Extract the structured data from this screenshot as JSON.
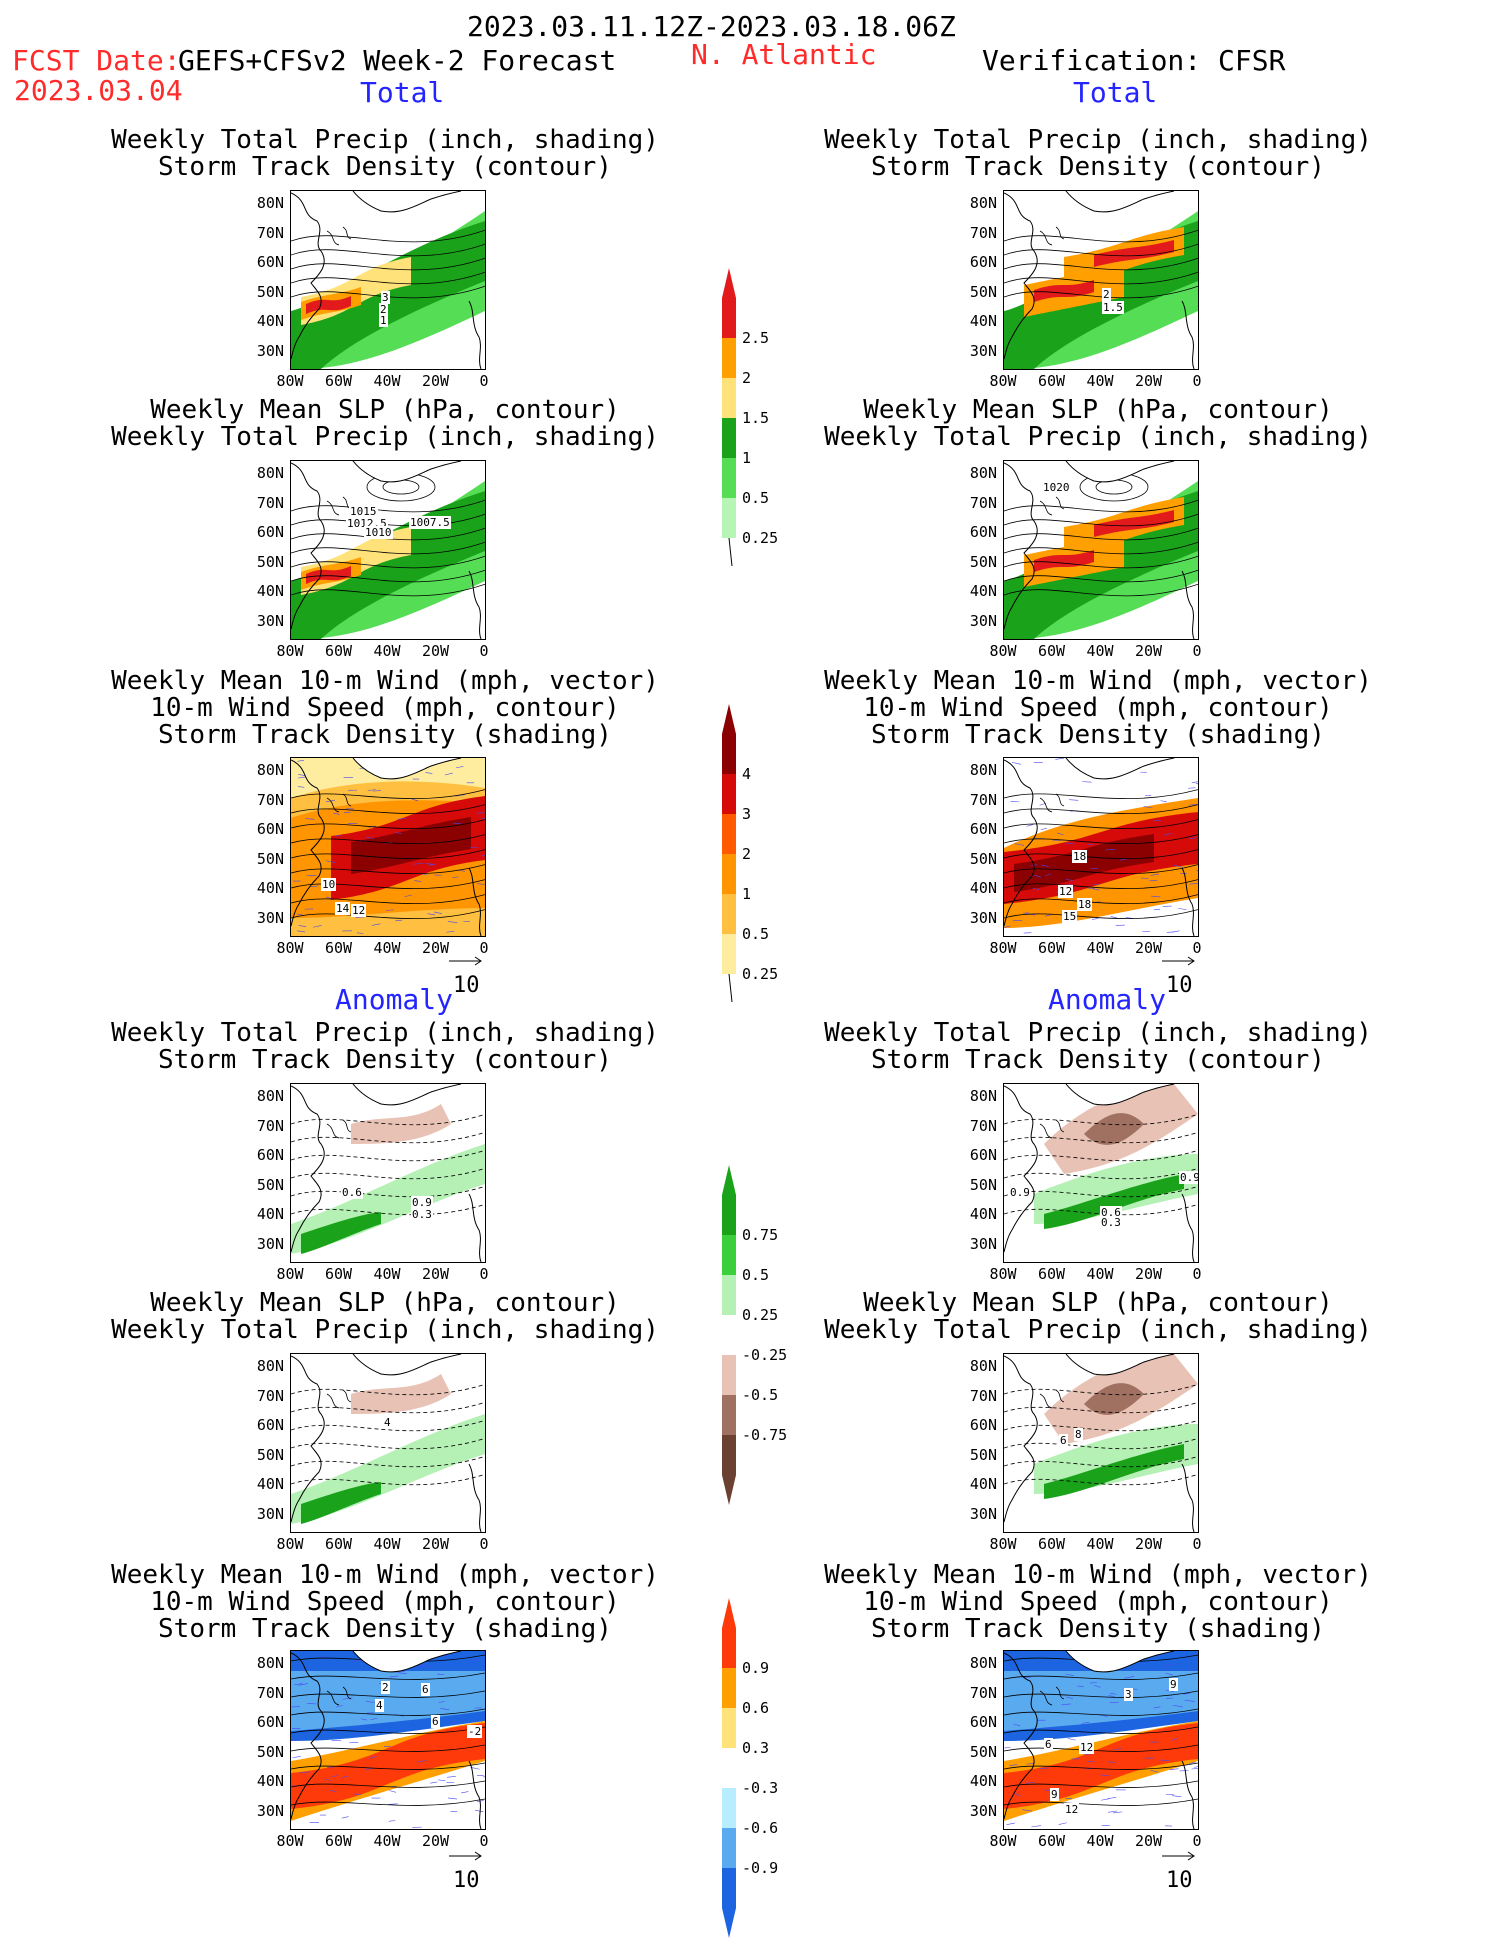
{
  "header": {
    "date_range": "2023.03.11.12Z-2023.03.18.06Z",
    "fcst_label": "FCST Date:",
    "model": "GEFS+CFSv2 Week-2 Forecast",
    "fcst_date": "2023.03.04",
    "region": "N. Atlantic",
    "verification": "Verification: CFSR"
  },
  "sections": {
    "total": "Total",
    "anomaly": "Anomaly"
  },
  "titles": {
    "precip_track": [
      "Weekly Total Precip (inch, shading)",
      "Storm Track Density (contour)"
    ],
    "slp_precip": [
      "Weekly Mean SLP (hPa, contour)",
      "Weekly Total Precip (inch, shading)"
    ],
    "wind_track": [
      "Weekly Mean 10-m Wind (mph, vector)",
      "10-m Wind Speed (mph, contour)",
      "Storm Track Density (shading)"
    ]
  },
  "axes": {
    "lat": [
      "80N",
      "70N",
      "60N",
      "50N",
      "40N",
      "30N"
    ],
    "lon": [
      "80W",
      "60W",
      "40W",
      "20W",
      "0"
    ]
  },
  "vector_ref": "10",
  "colorbars": {
    "precip_total": {
      "labels": [
        "2.5",
        "2",
        "1.5",
        "1",
        "0.5",
        "0.25"
      ],
      "colors": [
        "#e31a1c",
        "#ff9f00",
        "#ffe27a",
        "#1aa31a",
        "#55dd55",
        "#b7f5b7"
      ]
    },
    "track_total": {
      "labels": [
        "4",
        "3",
        "2",
        "1",
        "0.5",
        "0.25"
      ],
      "colors": [
        "#8b0000",
        "#d70a0a",
        "#ff5a00",
        "#ff9500",
        "#ffbf40",
        "#ffed9f"
      ]
    },
    "precip_anom": {
      "labels": [
        "0.75",
        "0.5",
        "0.25",
        "-0.25",
        "-0.5",
        "-0.75"
      ],
      "colors": [
        "#1aa31a",
        "#3ccf3c",
        "#b5f0b5",
        "#ffffff",
        "#e8c2b4",
        "#a07060",
        "#6b4232"
      ]
    },
    "track_anom": {
      "labels": [
        "0.9",
        "0.6",
        "0.3",
        "-0.3",
        "-0.6",
        "-0.9"
      ],
      "colors": [
        "#ff3a0a",
        "#ffa000",
        "#ffe27a",
        "#ffffff",
        "#b8ecff",
        "#5aaaf0",
        "#1c64e0"
      ]
    }
  },
  "panel_labels": {
    "L1": [
      "3",
      "2",
      "1"
    ],
    "R1": [
      "2",
      "1.5"
    ],
    "L2": [
      "1015",
      "1012.5",
      "1010",
      "1007.5"
    ],
    "R2": [
      "1020"
    ],
    "L3": [
      "10",
      "14",
      "12"
    ],
    "R3": [
      "18",
      "12",
      "18",
      "15"
    ],
    "L4": [
      "0.6",
      "0.9",
      "0.3"
    ],
    "R4": [
      "0.9",
      "0.9",
      "0.6",
      "0.3"
    ],
    "L5": [
      "4"
    ],
    "R5": [
      "6",
      "8"
    ],
    "L6": [
      "2",
      "4",
      "6",
      "6",
      "-2"
    ],
    "R6": [
      "3",
      "9",
      "6",
      "12",
      "9",
      "12"
    ]
  },
  "colors": {
    "title_red": "#ff2a2a",
    "section_blue": "#2424ff"
  }
}
